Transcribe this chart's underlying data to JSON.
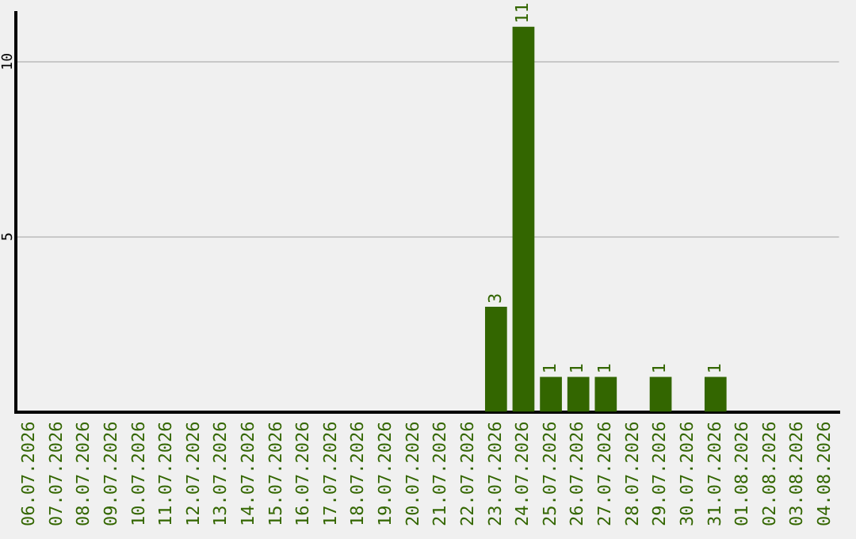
{
  "chart_data": {
    "type": "bar",
    "categories": [
      "06.07.2026",
      "07.07.2026",
      "08.07.2026",
      "09.07.2026",
      "10.07.2026",
      "11.07.2026",
      "12.07.2026",
      "13.07.2026",
      "14.07.2026",
      "15.07.2026",
      "16.07.2026",
      "17.07.2026",
      "18.07.2026",
      "19.07.2026",
      "20.07.2026",
      "21.07.2026",
      "22.07.2026",
      "23.07.2026",
      "24.07.2026",
      "25.07.2026",
      "26.07.2026",
      "27.07.2026",
      "28.07.2026",
      "29.07.2026",
      "30.07.2026",
      "31.07.2026",
      "01.08.2026",
      "02.08.2026",
      "03.08.2026",
      "04.08.2026"
    ],
    "values": [
      0,
      0,
      0,
      0,
      0,
      0,
      0,
      0,
      0,
      0,
      0,
      0,
      0,
      0,
      0,
      0,
      0,
      3,
      11,
      1,
      1,
      1,
      0,
      1,
      0,
      1,
      0,
      0,
      0,
      0
    ],
    "value_labels": [
      null,
      null,
      null,
      null,
      null,
      null,
      null,
      null,
      null,
      null,
      null,
      null,
      null,
      null,
      null,
      null,
      null,
      "3",
      "11",
      "1",
      "1",
      "1",
      null,
      "1",
      null,
      "1",
      null,
      null,
      null,
      null
    ],
    "color": "#336600",
    "ylim": [
      0,
      11.4
    ],
    "yticks": [
      5,
      10
    ],
    "grid": "y",
    "legend": false
  }
}
